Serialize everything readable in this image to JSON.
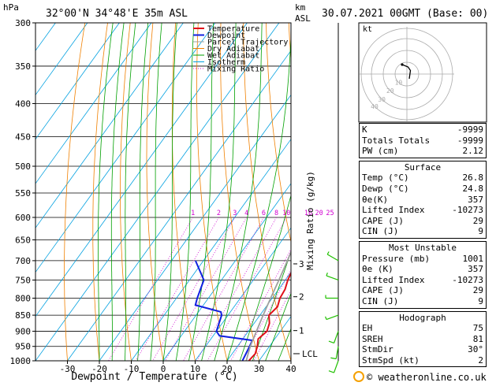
{
  "header": {
    "pressure_unit": "hPa",
    "location": "32°00'N 34°48'E 35m ASL",
    "height_unit": "km",
    "height_unit_sub": "ASL",
    "datetime": "30.07.2021 00GMT (Base: 00)"
  },
  "colors": {
    "temperature": "#e0101a",
    "dewpoint": "#1020e0",
    "parcel": "#a0a0a0",
    "dry_adiabat": "#f08000",
    "wet_adiabat": "#00a000",
    "isotherm": "#00a0e0",
    "mixing_ratio": "#d000d0",
    "wind": "#20c000"
  },
  "legend": {
    "items": [
      "Temperature",
      "Dewpoint",
      "Parcel Trajectory",
      "Dry Adiabat",
      "Wet Adiabat",
      "Isotherm",
      "Mixing Ratio"
    ]
  },
  "chart_data": {
    "type": "line",
    "xlabel": "Dewpoint / Temperature (°C)",
    "ylabel": "",
    "right_label": "Mixing Ratio (g/kg)",
    "x_ticks": [
      -30,
      -20,
      -10,
      0,
      10,
      20,
      30,
      40
    ],
    "pressure_levels": [
      300,
      350,
      400,
      450,
      500,
      550,
      600,
      650,
      700,
      750,
      800,
      850,
      900,
      950,
      1000
    ],
    "xlim": [
      -40,
      40
    ],
    "ylim": [
      1000,
      300
    ],
    "skew": 0.72,
    "mixing_ratio_labels": [
      "1",
      "2",
      "3",
      "4",
      "6",
      "8",
      "10",
      "16",
      "20",
      "25"
    ],
    "mixing_ratio_values": [
      1,
      2,
      3,
      4,
      6,
      8,
      10,
      16,
      20,
      25
    ],
    "height_ticks": [
      {
        "label": "1",
        "p": 898
      },
      {
        "label": "2",
        "p": 796
      },
      {
        "label": "3",
        "p": 708
      }
    ],
    "lcl_label": "LCL",
    "lcl_p": 975,
    "series": [
      {
        "name": "Temperature",
        "points": [
          [
            1000,
            26.8
          ],
          [
            975,
            27.2
          ],
          [
            950,
            26.2
          ],
          [
            925,
            24.8
          ],
          [
            900,
            25.8
          ],
          [
            875,
            24.8
          ],
          [
            850,
            22.8
          ],
          [
            825,
            23.6
          ],
          [
            800,
            22.4
          ],
          [
            775,
            22.0
          ],
          [
            750,
            20.8
          ],
          [
            725,
            20.0
          ],
          [
            700,
            19.2
          ]
        ]
      },
      {
        "name": "Dewpoint",
        "points": [
          [
            1000,
            24.8
          ],
          [
            975,
            24.3
          ],
          [
            950,
            23.8
          ],
          [
            930,
            23.3
          ],
          [
            915,
            12.0
          ],
          [
            900,
            10.0
          ],
          [
            850,
            8.0
          ],
          [
            840,
            7.0
          ],
          [
            820,
            -2.5
          ],
          [
            800,
            -3.5
          ],
          [
            750,
            -5.5
          ],
          [
            700,
            -12.5
          ]
        ]
      },
      {
        "name": "Parcel Trajectory",
        "points": [
          [
            1000,
            26.0
          ],
          [
            975,
            25.0
          ],
          [
            950,
            24.0
          ],
          [
            900,
            22.5
          ],
          [
            850,
            21.0
          ],
          [
            800,
            19.5
          ],
          [
            750,
            18.0
          ],
          [
            700,
            16.3
          ],
          [
            650,
            14.3
          ],
          [
            600,
            12.0
          ],
          [
            550,
            9.4
          ],
          [
            500,
            6.4
          ],
          [
            450,
            2.6
          ],
          [
            400,
            -2.4
          ],
          [
            350,
            -8.6
          ],
          [
            300,
            -16.4
          ]
        ]
      }
    ],
    "wind_barbs": [
      {
        "p": 1000,
        "dir": 200,
        "spd": 10
      },
      {
        "p": 950,
        "dir": 190,
        "spd": 10
      },
      {
        "p": 900,
        "dir": 200,
        "spd": 10
      },
      {
        "p": 850,
        "dir": 250,
        "spd": 5
      },
      {
        "p": 800,
        "dir": 270,
        "spd": 5
      },
      {
        "p": 750,
        "dir": 290,
        "spd": 5
      },
      {
        "p": 700,
        "dir": 300,
        "spd": 5
      }
    ],
    "hodograph": {
      "label": "kt",
      "ring_labels": [
        "10",
        "20",
        "30",
        "40"
      ],
      "points": [
        [
          2,
          4
        ],
        [
          3,
          -3
        ],
        [
          1,
          -6
        ],
        [
          -4,
          -8
        ]
      ]
    }
  },
  "indices": {
    "rows": [
      {
        "label": "K",
        "value": "-9999"
      },
      {
        "label": "Totals Totals",
        "value": "-9999"
      },
      {
        "label": "PW (cm)",
        "value": "2.12"
      }
    ]
  },
  "surface": {
    "title": "Surface",
    "rows": [
      {
        "label": "Temp (°C)",
        "value": "26.8"
      },
      {
        "label": "Dewp (°C)",
        "value": "24.8"
      },
      {
        "label": "θe(K)",
        "value": "357"
      },
      {
        "label": "Lifted Index",
        "value": "-10273"
      },
      {
        "label": "CAPE (J)",
        "value": "29"
      },
      {
        "label": "CIN (J)",
        "value": "9"
      }
    ]
  },
  "most_unstable": {
    "title": "Most Unstable",
    "rows": [
      {
        "label": "Pressure (mb)",
        "value": "1001"
      },
      {
        "label": "θe (K)",
        "value": "357"
      },
      {
        "label": "Lifted Index",
        "value": "-10273"
      },
      {
        "label": "CAPE (J)",
        "value": "29"
      },
      {
        "label": "CIN (J)",
        "value": "9"
      }
    ]
  },
  "hodograph_table": {
    "title": "Hodograph",
    "rows": [
      {
        "label": "EH",
        "value": "75"
      },
      {
        "label": "SREH",
        "value": "81"
      },
      {
        "label": "StmDir",
        "value": "30°"
      },
      {
        "label": "StmSpd (kt)",
        "value": "2"
      }
    ]
  },
  "footer": {
    "copyright": "© weatheronline.co.uk"
  }
}
